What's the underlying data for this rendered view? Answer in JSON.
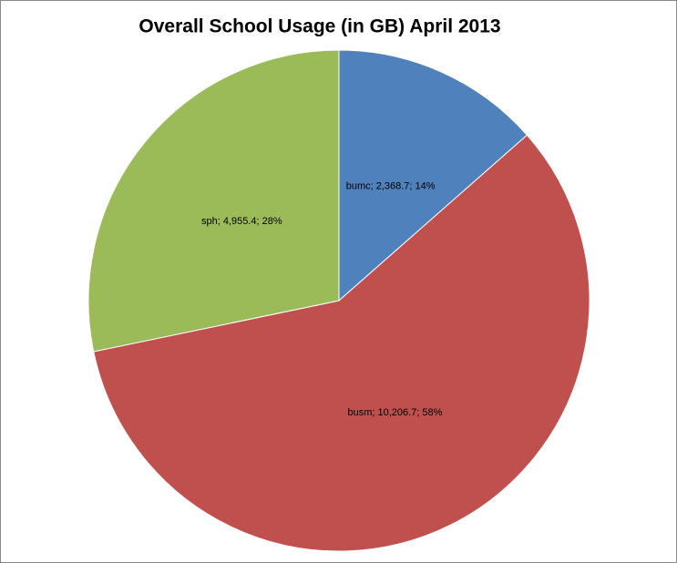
{
  "chart_data": {
    "type": "pie",
    "title": "Overall School Usage (in GB) April 2013",
    "categories": [
      "bumc",
      "busm",
      "sph"
    ],
    "values": [
      2368.7,
      10206.7,
      4955.4
    ],
    "value_labels": [
      "bumc; 2,368.7; 14%",
      "busm; 10,206.7; 58%",
      "sph; 4,955.4; 28%"
    ],
    "colors": [
      "#4f81bd",
      "#c0504d",
      "#9bbb59"
    ]
  }
}
